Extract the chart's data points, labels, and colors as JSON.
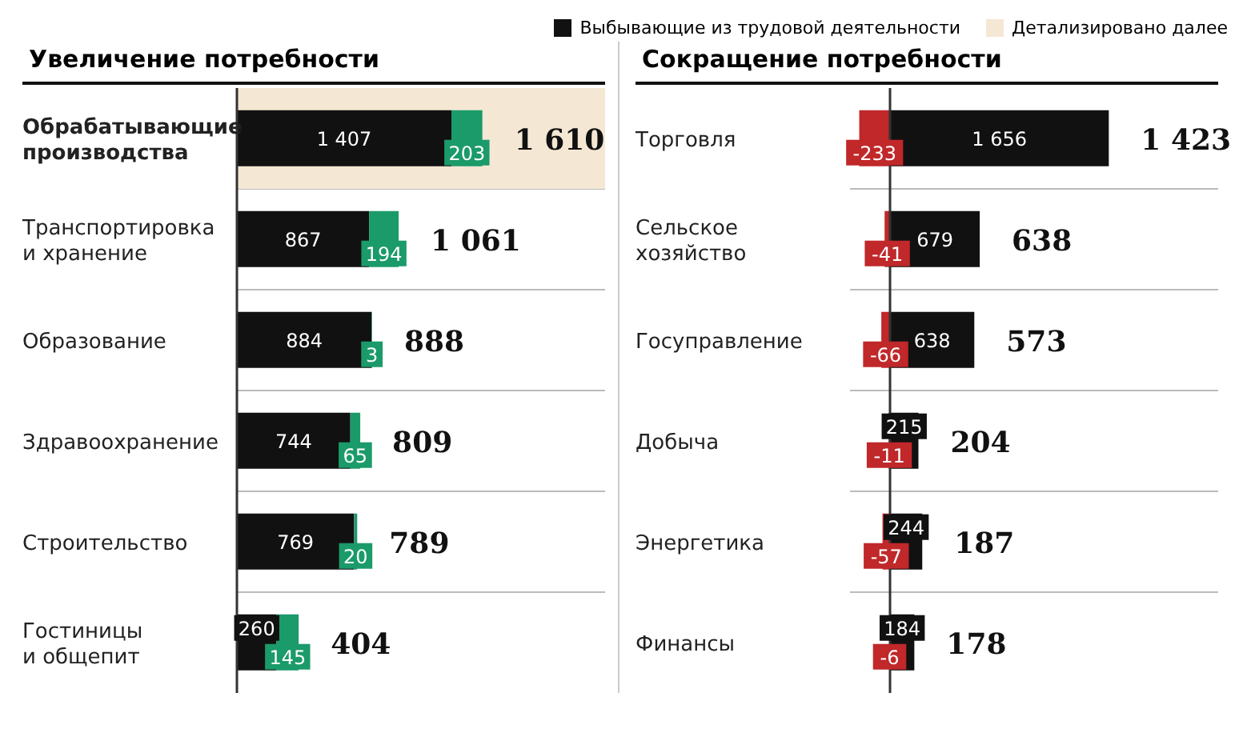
{
  "chart_data": [
    {
      "type": "bar",
      "orientation": "horizontal",
      "stacked": true,
      "title": "Увеличение потребности",
      "categories": [
        "Обрабатывающие производства",
        "Транспортировка и хранение",
        "Образование",
        "Здравоохранение",
        "Строительство",
        "Гостиницы и общепит"
      ],
      "series": [
        {
          "color": "#111111",
          "values": [
            1407,
            867,
            884,
            744,
            769,
            260
          ],
          "value_labels": [
            "1 407",
            "867",
            "884",
            "744",
            "769",
            "260"
          ]
        },
        {
          "color": "#1b9a6a",
          "values": [
            203,
            194,
            3,
            65,
            20,
            145
          ],
          "value_labels": [
            "203",
            "194",
            "3",
            "65",
            "20",
            "145"
          ]
        }
      ],
      "totals": [
        "1 610",
        "1 061",
        "888",
        "809",
        "789",
        "404"
      ],
      "bands": [
        {
          "axis": "y",
          "from": "Обрабатывающие производства",
          "to": "Обрабатывающие производства",
          "label": "Детализировано далее",
          "color": "#f4e8d4"
        }
      ],
      "grid": "y",
      "tick_labels": "y"
    },
    {
      "type": "bar",
      "orientation": "horizontal",
      "stacked": true,
      "title": "Сокращение потребности",
      "categories": [
        "Торговля",
        "Сельское хозяйство",
        "Госуправление",
        "Добыча",
        "Энергетика",
        "Финансы"
      ],
      "series": [
        {
          "name": "Выбывающие из трудовой деятельности",
          "color": "#111111",
          "values": [
            1656,
            679,
            638,
            215,
            244,
            184
          ],
          "value_labels": [
            "1 656",
            "679",
            "638",
            "215",
            "244",
            "184"
          ]
        },
        {
          "color": "#c0282a",
          "values": [
            -233,
            -41,
            -66,
            -11,
            -57,
            -6
          ],
          "value_labels": [
            "-233",
            "-41",
            "-66",
            "-11",
            "-57",
            "-6"
          ]
        }
      ],
      "totals": [
        "1 423",
        "638",
        "573",
        "204",
        "187",
        "178"
      ],
      "legend": "top",
      "grid": "y",
      "tick_labels": "y"
    }
  ]
}
